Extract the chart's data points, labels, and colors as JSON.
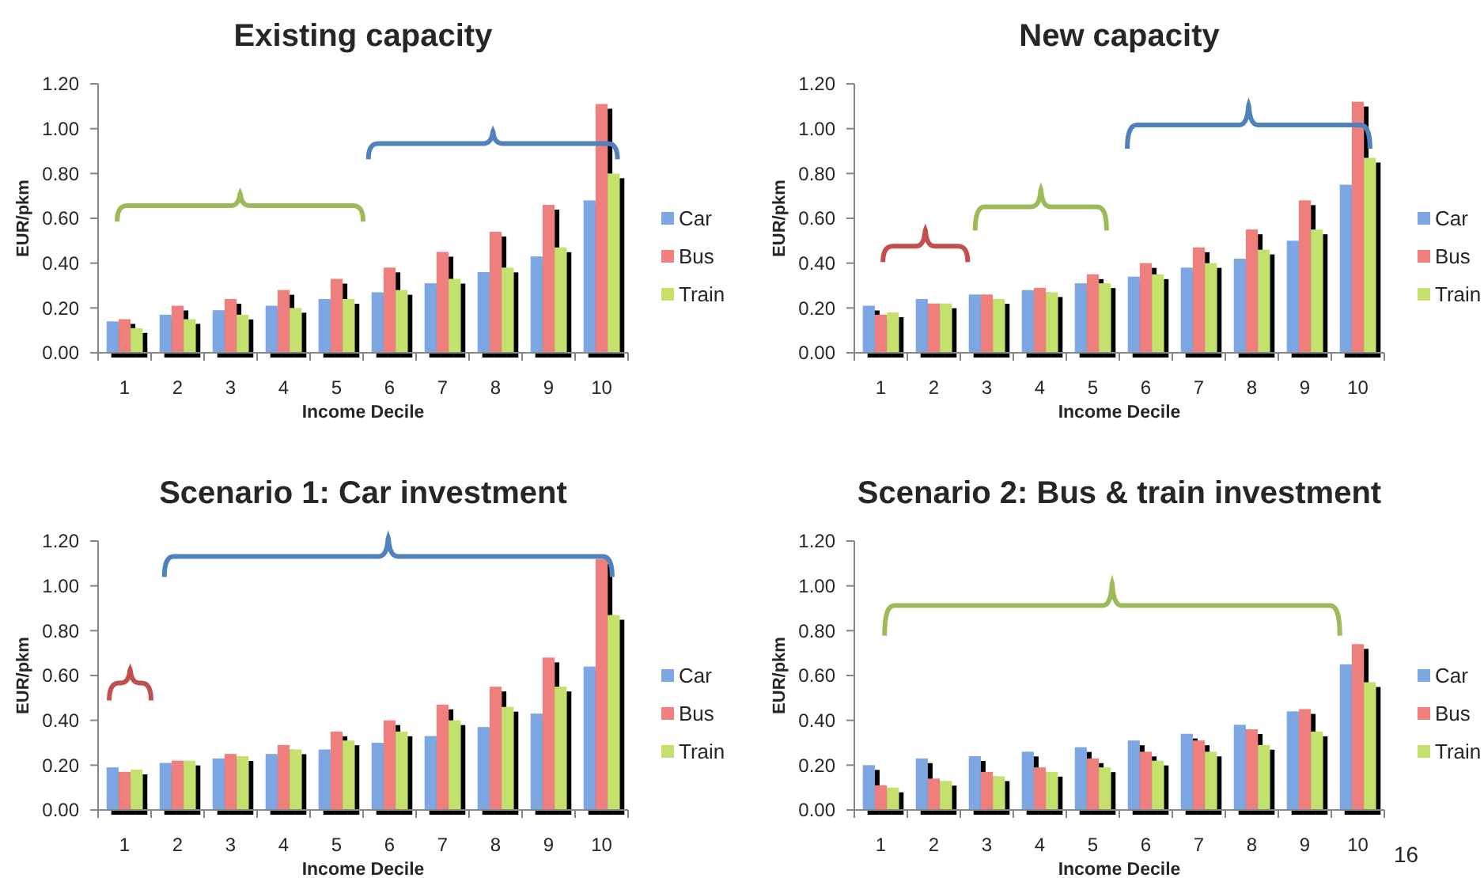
{
  "chart_data": [
    {
      "type": "bar",
      "title": "Existing capacity",
      "xlabel": "Income Decile",
      "ylabel": "EUR/pkm",
      "categories": [
        "1",
        "2",
        "3",
        "4",
        "5",
        "6",
        "7",
        "8",
        "9",
        "10"
      ],
      "series": [
        {
          "name": "Car",
          "color": "#7da7e3",
          "values": [
            0.14,
            0.17,
            0.19,
            0.21,
            0.24,
            0.27,
            0.31,
            0.36,
            0.43,
            0.68
          ]
        },
        {
          "name": "Bus",
          "color": "#ef7f7c",
          "values": [
            0.15,
            0.21,
            0.24,
            0.28,
            0.33,
            0.38,
            0.45,
            0.54,
            0.66,
            1.11
          ]
        },
        {
          "name": "Train",
          "color": "#c3e16c",
          "values": [
            0.11,
            0.15,
            0.17,
            0.2,
            0.24,
            0.28,
            0.33,
            0.38,
            0.47,
            0.8
          ]
        }
      ],
      "ylim": [
        0,
        1.2
      ],
      "yticks": [
        {
          "value": 0,
          "label": "0.00"
        },
        {
          "value": 0.2,
          "label": "0.20"
        },
        {
          "value": 0.4,
          "label": "0.40"
        },
        {
          "value": 0.6,
          "label": "0.60"
        },
        {
          "value": 0.8,
          "label": "0.80"
        },
        {
          "value": 1,
          "label": "1.00"
        },
        {
          "value": 1.2,
          "label": "1.20"
        }
      ],
      "legend": "right"
    },
    {
      "type": "bar",
      "title": "New capacity",
      "xlabel": "Income Decile",
      "ylabel": "EUR/pkm",
      "categories": [
        "1",
        "2",
        "3",
        "4",
        "5",
        "6",
        "7",
        "8",
        "9",
        "10"
      ],
      "series": [
        {
          "name": "Car",
          "color": "#7da7e3",
          "values": [
            0.21,
            0.24,
            0.26,
            0.28,
            0.31,
            0.34,
            0.38,
            0.42,
            0.5,
            0.75
          ]
        },
        {
          "name": "Bus",
          "color": "#ef7f7c",
          "values": [
            0.17,
            0.22,
            0.26,
            0.29,
            0.35,
            0.4,
            0.47,
            0.55,
            0.68,
            1.12
          ]
        },
        {
          "name": "Train",
          "color": "#c3e16c",
          "values": [
            0.18,
            0.22,
            0.24,
            0.27,
            0.31,
            0.35,
            0.4,
            0.46,
            0.55,
            0.87
          ]
        }
      ],
      "ylim": [
        0,
        1.2
      ],
      "yticks": [
        {
          "value": 0,
          "label": "0.00"
        },
        {
          "value": 0.2,
          "label": "0.20"
        },
        {
          "value": 0.4,
          "label": "0.40"
        },
        {
          "value": 0.6,
          "label": "0.60"
        },
        {
          "value": 0.8,
          "label": "0.80"
        },
        {
          "value": 1,
          "label": "1.00"
        },
        {
          "value": 1.2,
          "label": "1.20"
        }
      ],
      "legend": "right"
    },
    {
      "type": "bar",
      "title": "Scenario 1: Car investment",
      "xlabel": "Income Decile",
      "ylabel": "EUR/pkm",
      "categories": [
        "1",
        "2",
        "3",
        "4",
        "5",
        "6",
        "7",
        "8",
        "9",
        "10"
      ],
      "series": [
        {
          "name": "Car",
          "color": "#7da7e3",
          "values": [
            0.19,
            0.21,
            0.23,
            0.25,
            0.27,
            0.3,
            0.33,
            0.37,
            0.43,
            0.64
          ]
        },
        {
          "name": "Bus",
          "color": "#ef7f7c",
          "values": [
            0.17,
            0.22,
            0.25,
            0.29,
            0.35,
            0.4,
            0.47,
            0.55,
            0.68,
            1.12
          ]
        },
        {
          "name": "Train",
          "color": "#c3e16c",
          "values": [
            0.18,
            0.22,
            0.24,
            0.27,
            0.31,
            0.35,
            0.4,
            0.46,
            0.55,
            0.87
          ]
        }
      ],
      "ylim": [
        0,
        1.2
      ],
      "yticks": [
        {
          "value": 0,
          "label": "0.00"
        },
        {
          "value": 0.2,
          "label": "0.20"
        },
        {
          "value": 0.4,
          "label": "0.40"
        },
        {
          "value": 0.6,
          "label": "0.60"
        },
        {
          "value": 0.8,
          "label": "0.80"
        },
        {
          "value": 1,
          "label": "1.00"
        },
        {
          "value": 1.2,
          "label": "1.20"
        }
      ],
      "legend": "right"
    },
    {
      "type": "bar",
      "title": "Scenario 2: Bus & train investment",
      "xlabel": "Income Decile",
      "ylabel": "EUR/pkm",
      "categories": [
        "1",
        "2",
        "3",
        "4",
        "5",
        "6",
        "7",
        "8",
        "9",
        "10"
      ],
      "series": [
        {
          "name": "Car",
          "color": "#7da7e3",
          "values": [
            0.2,
            0.23,
            0.24,
            0.26,
            0.28,
            0.31,
            0.34,
            0.38,
            0.44,
            0.65
          ]
        },
        {
          "name": "Bus",
          "color": "#ef7f7c",
          "values": [
            0.11,
            0.14,
            0.17,
            0.19,
            0.23,
            0.26,
            0.31,
            0.36,
            0.45,
            0.74
          ]
        },
        {
          "name": "Train",
          "color": "#c3e16c",
          "values": [
            0.1,
            0.13,
            0.15,
            0.17,
            0.19,
            0.22,
            0.26,
            0.29,
            0.35,
            0.57
          ]
        }
      ],
      "ylim": [
        0,
        1.2
      ],
      "yticks": [
        {
          "value": 0,
          "label": "0.00"
        },
        {
          "value": 0.2,
          "label": "0.20"
        },
        {
          "value": 0.4,
          "label": "0.40"
        },
        {
          "value": 0.6,
          "label": "0.60"
        },
        {
          "value": 0.8,
          "label": "0.80"
        },
        {
          "value": 1,
          "label": "1.00"
        },
        {
          "value": 1.2,
          "label": "1.20"
        }
      ],
      "legend": "right",
      "annotations": [
        "16"
      ]
    }
  ]
}
